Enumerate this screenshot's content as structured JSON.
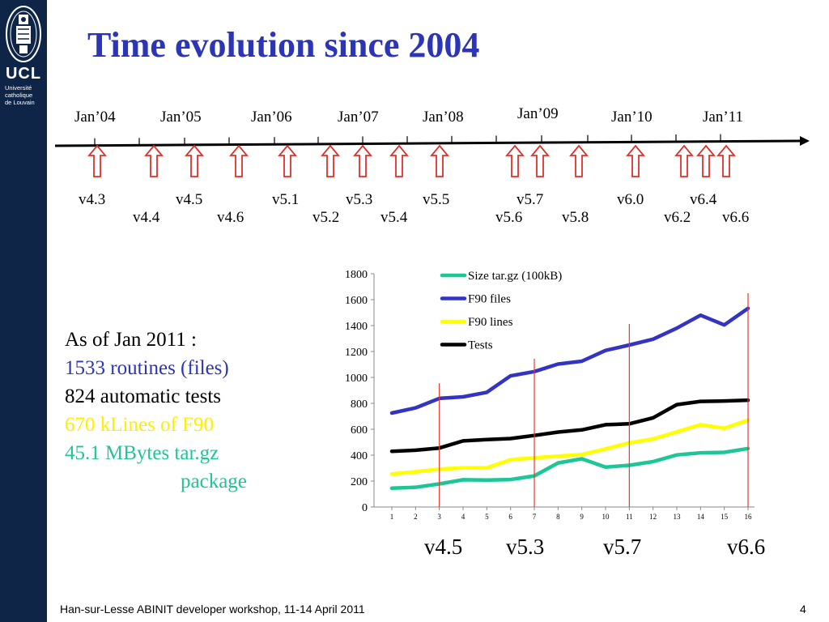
{
  "logo": {
    "name": "UCL",
    "university_line": "Université\ncatholique\nde Louvain"
  },
  "slide": {
    "title": "Time evolution since 2004",
    "page_number": "4",
    "footer": "Han-sur-Lesse ABINIT developer workshop, 11-14 April 2011"
  },
  "timeline": {
    "years": [
      "Jan’04",
      "Jan’05",
      "Jan’06",
      "Jan’07",
      "Jan’08",
      "Jan’09",
      "Jan’10",
      "Jan’11"
    ],
    "versions_top": [
      "v4.3",
      "v4.5",
      "v5.1",
      "v5.3",
      "v5.5",
      "v5.7",
      "v6.0",
      "v6.4"
    ],
    "versions_bottom": [
      "v4.4",
      "v4.6",
      "v5.2",
      "v5.4",
      "v5.6",
      "v5.8",
      "v6.2",
      "v6.6"
    ]
  },
  "stats": {
    "heading": "As of Jan 2011 :",
    "routines": "1533 routines (files)",
    "tests": "824 automatic tests",
    "klines": "670 kLines of F90",
    "mbytes": "45.1 MBytes tar.gz",
    "package": "package"
  },
  "chart_versions": [
    "v4.5",
    "v5.3",
    "v5.7",
    "v6.6"
  ],
  "colors": {
    "title": "#2b35b5",
    "routines": "#2b35b5",
    "klines": "#ffee00",
    "mbytes": "#1ec596",
    "sidebar": "#0f2547",
    "marker_lines": "#e53b2f"
  },
  "chart_data": {
    "type": "line",
    "x": [
      1,
      2,
      3,
      4,
      5,
      6,
      7,
      8,
      9,
      10,
      11,
      12,
      13,
      14,
      15,
      16
    ],
    "ylim": [
      0,
      1800
    ],
    "yticks": [
      0,
      200,
      400,
      600,
      800,
      1000,
      1200,
      1400,
      1600,
      1800
    ],
    "legend_position": "top-right",
    "grid": false,
    "series": [
      {
        "name": "Size tar.gz (100kB)",
        "color": "#1ec596",
        "values": [
          145,
          152,
          178,
          210,
          208,
          212,
          240,
          340,
          372,
          308,
          322,
          350,
          402,
          418,
          422,
          451
        ]
      },
      {
        "name": "F90 files",
        "color": "#3333c4",
        "values": [
          725,
          765,
          838,
          850,
          885,
          1012,
          1045,
          1103,
          1125,
          1208,
          1250,
          1295,
          1380,
          1480,
          1405,
          1533
        ]
      },
      {
        "name": "F90 lines",
        "color": "#ffff00",
        "values": [
          255,
          272,
          292,
          302,
          302,
          365,
          380,
          392,
          405,
          448,
          495,
          525,
          580,
          635,
          608,
          670
        ]
      },
      {
        "name": "Tests",
        "color": "#000000",
        "values": [
          430,
          438,
          455,
          510,
          520,
          528,
          552,
          578,
          595,
          635,
          642,
          688,
          790,
          815,
          818,
          824
        ]
      }
    ],
    "markers": [
      {
        "label": "v4.5",
        "x": 3
      },
      {
        "label": "v5.3",
        "x": 7
      },
      {
        "label": "v5.7",
        "x": 11
      },
      {
        "label": "v6.6",
        "x": 16
      }
    ]
  }
}
